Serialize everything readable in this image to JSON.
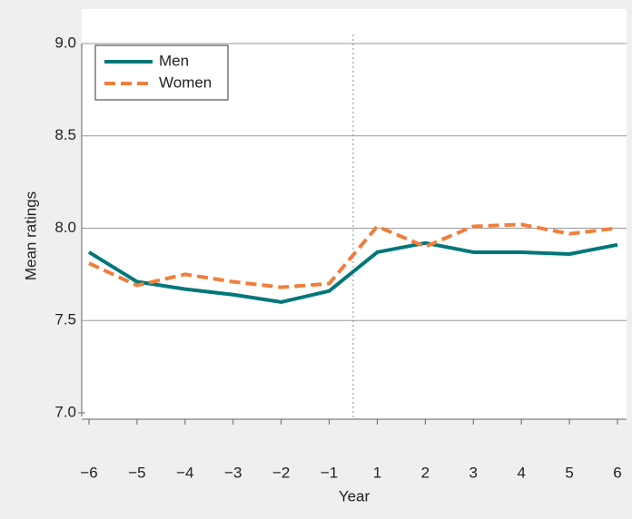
{
  "chart_data": {
    "type": "line",
    "x_label": "Year",
    "y_label": "Mean ratings",
    "categories": [
      "−6",
      "−5",
      "−4",
      "−3",
      "−2",
      "−1",
      "1",
      "2",
      "3",
      "4",
      "5",
      "6"
    ],
    "series": [
      {
        "name": "Men",
        "color": "#00777a",
        "dash": false,
        "values": [
          7.87,
          7.71,
          7.67,
          7.64,
          7.6,
          7.66,
          7.87,
          7.92,
          7.87,
          7.87,
          7.86,
          7.91
        ]
      },
      {
        "name": "Women",
        "color": "#f07f3c",
        "dash": true,
        "values": [
          7.81,
          7.69,
          7.75,
          7.71,
          7.68,
          7.7,
          8.01,
          7.9,
          8.01,
          8.02,
          7.97,
          8.0
        ]
      }
    ],
    "ylim": [
      7.0,
      9.0
    ],
    "yticks": [
      {
        "value": 7.0,
        "label": "7.0"
      },
      {
        "value": 7.5,
        "label": "7.5"
      },
      {
        "value": 8.0,
        "label": "8.0"
      },
      {
        "value": 8.5,
        "label": "8.5"
      },
      {
        "value": 9.0,
        "label": "9.0"
      }
    ],
    "grid": true,
    "legend": "upper-left"
  }
}
